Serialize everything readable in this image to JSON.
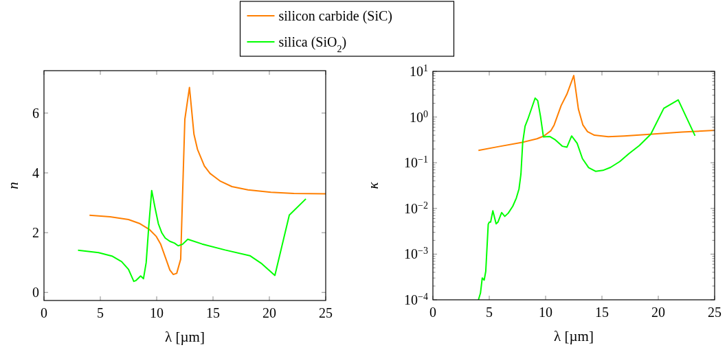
{
  "chart_data": [
    {
      "type": "line",
      "xlabel": "λ [µm]",
      "ylabel": "n",
      "xlim": [
        0,
        25
      ],
      "ylim": [
        -0.27,
        7.42
      ],
      "xticks": [
        0,
        5,
        10,
        15,
        20,
        25
      ],
      "yticks": [
        0,
        2,
        4,
        6
      ],
      "grid": false,
      "legend": "top",
      "series": [
        {
          "name": "silicon carbide (SiC)",
          "color": "#ff7f00",
          "x": [
            4.04,
            5.87,
            7.5,
            8.52,
            9.34,
            9.95,
            10.36,
            10.87,
            11.17,
            11.48,
            11.78,
            12.13,
            12.27,
            12.5,
            12.91,
            13.31,
            13.62,
            14.23,
            14.74,
            15.66,
            16.68,
            18.1,
            20.14,
            22.18,
            25
          ],
          "values": [
            2.58,
            2.53,
            2.44,
            2.3,
            2.11,
            1.88,
            1.61,
            1.07,
            0.75,
            0.6,
            0.64,
            1.11,
            2.91,
            5.79,
            6.86,
            5.29,
            4.79,
            4.23,
            3.98,
            3.72,
            3.54,
            3.43,
            3.35,
            3.31,
            3.3
          ]
        },
        {
          "name": "silica (SiO$_{2}$)",
          "color": "#00ff00",
          "x": [
            3.02,
            4.85,
            6.08,
            6.89,
            7.5,
            7.97,
            8.17,
            8.58,
            8.83,
            9.07,
            9.3,
            9.56,
            9.85,
            10.15,
            10.46,
            10.76,
            11.17,
            11.58,
            11.91,
            12.29,
            12.76,
            14.03,
            16.07,
            18.27,
            19.33,
            20.49,
            21.77,
            23.24
          ],
          "values": [
            1.41,
            1.33,
            1.21,
            1.03,
            0.77,
            0.37,
            0.4,
            0.55,
            0.46,
            1.0,
            2.22,
            3.41,
            2.84,
            2.3,
            1.99,
            1.82,
            1.71,
            1.65,
            1.56,
            1.61,
            1.78,
            1.62,
            1.42,
            1.23,
            0.96,
            0.57,
            2.59,
            3.13
          ]
        }
      ]
    },
    {
      "type": "line",
      "xlabel": "λ [µm]",
      "ylabel": "κ",
      "log": "y",
      "xlim": [
        0,
        25
      ],
      "ylim": [
        0.0001,
        10
      ],
      "xticks": [
        0,
        5,
        10,
        15,
        20,
        25
      ],
      "yticks": [
        {
          "value": 0.0001,
          "label": "10$^{−4}$"
        },
        {
          "value": 0.0002,
          "label": null
        },
        {
          "value": 0.0003,
          "label": null
        },
        {
          "value": 0.0004,
          "label": null
        },
        {
          "value": 0.0005,
          "label": null
        },
        {
          "value": 0.0006,
          "label": null
        },
        {
          "value": 0.0007,
          "label": null
        },
        {
          "value": 0.0008,
          "label": null
        },
        {
          "value": 0.0009,
          "label": null
        },
        {
          "value": 0.001,
          "label": "10$^{−3}$"
        },
        {
          "value": 0.002,
          "label": null
        },
        {
          "value": 0.003,
          "label": null
        },
        {
          "value": 0.004,
          "label": null
        },
        {
          "value": 0.005,
          "label": null
        },
        {
          "value": 0.006,
          "label": null
        },
        {
          "value": 0.007,
          "label": null
        },
        {
          "value": 0.008,
          "label": null
        },
        {
          "value": 0.009,
          "label": null
        },
        {
          "value": 0.01,
          "label": "10$^{−2}$"
        },
        {
          "value": 0.02,
          "label": null
        },
        {
          "value": 0.03,
          "label": null
        },
        {
          "value": 0.04,
          "label": null
        },
        {
          "value": 0.05,
          "label": null
        },
        {
          "value": 0.06,
          "label": null
        },
        {
          "value": 0.07,
          "label": null
        },
        {
          "value": 0.08,
          "label": null
        },
        {
          "value": 0.09,
          "label": null
        },
        {
          "value": 0.1,
          "label": "10$^{−1}$"
        },
        {
          "value": 0.2,
          "label": null
        },
        {
          "value": 0.3,
          "label": null
        },
        {
          "value": 0.4,
          "label": null
        },
        {
          "value": 0.5,
          "label": null
        },
        {
          "value": 0.6,
          "label": null
        },
        {
          "value": 0.7,
          "label": null
        },
        {
          "value": 0.8,
          "label": null
        },
        {
          "value": 0.9,
          "label": null
        },
        {
          "value": 1,
          "label": "10$^{0}$"
        },
        {
          "value": 2,
          "label": null
        },
        {
          "value": 3,
          "label": null
        },
        {
          "value": 4,
          "label": null
        },
        {
          "value": 5,
          "label": null
        },
        {
          "value": 6,
          "label": null
        },
        {
          "value": 7,
          "label": null
        },
        {
          "value": 8,
          "label": null
        },
        {
          "value": 9,
          "label": null
        },
        {
          "value": 10,
          "label": "10$^{1}$"
        }
      ],
      "grid": false,
      "series": [
        {
          "color": "#ff7f00",
          "x": [
            4.04,
            5.77,
            8.01,
            9.24,
            9.85,
            10.46,
            10.76,
            11.38,
            11.89,
            12.5,
            12.91,
            13.31,
            13.72,
            14.33,
            15.56,
            16.98,
            19.23,
            22.08,
            25
          ],
          "values": [
            0.186,
            0.224,
            0.282,
            0.335,
            0.385,
            0.5,
            0.67,
            1.78,
            3.16,
            8.1,
            1.5,
            0.67,
            0.48,
            0.4,
            0.37,
            0.385,
            0.42,
            0.47,
            0.51
          ]
        },
        {
          "color": "#00ff00",
          "x": [
            4.04,
            4.22,
            4.38,
            4.55,
            4.69,
            4.91,
            5.0,
            5.12,
            5.32,
            5.61,
            5.77,
            6.1,
            6.38,
            6.69,
            7.09,
            7.4,
            7.64,
            7.81,
            7.97,
            8.18,
            8.42,
            9.07,
            9.3,
            9.54,
            9.81,
            10.36,
            10.87,
            11.48,
            11.89,
            12.31,
            12.8,
            13.27,
            13.82,
            14.43,
            15.09,
            15.76,
            16.58,
            17.39,
            18.31,
            19.33,
            20.49,
            21.77,
            23.26
          ],
          "values": [
            0.0001,
            0.00014,
            0.0003,
            0.00027,
            0.00042,
            0.0045,
            0.005,
            0.005,
            0.0089,
            0.0046,
            0.005,
            0.0081,
            0.0067,
            0.0079,
            0.0112,
            0.0168,
            0.0266,
            0.056,
            0.28,
            0.63,
            0.89,
            2.6,
            2.29,
            1.06,
            0.367,
            0.376,
            0.316,
            0.23,
            0.219,
            0.385,
            0.266,
            0.123,
            0.078,
            0.065,
            0.068,
            0.079,
            0.106,
            0.158,
            0.237,
            0.42,
            1.55,
            2.37,
            0.39
          ]
        }
      ]
    }
  ]
}
